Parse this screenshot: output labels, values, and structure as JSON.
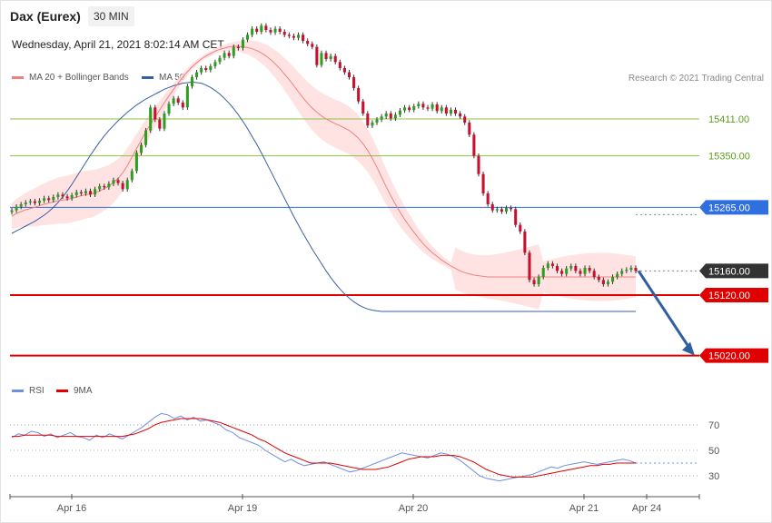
{
  "header": {
    "title": "Dax (Eurex)",
    "timeframe": "30 MIN",
    "datetime": "Wednesday, April 21, 2021 8:02:14 AM CET"
  },
  "legend": {
    "ma20": "MA 20 + Bollinger Bands",
    "ma50": "MA 50",
    "credit": "Research © 2021 Trading Central",
    "rsi": "RSI",
    "rsi_ma": "9MA"
  },
  "colors": {
    "up": "#2e9e1f",
    "down": "#c8102e",
    "band": "#ffd9d9",
    "ma20": "#f08080",
    "ma50": "#3a5f9f",
    "resistance": "#8bc34a",
    "pivot": "#2f6fe0",
    "support": "#e00000",
    "last": "#333333",
    "arrow": "#2e5fa0",
    "rsi": "#6f8fe0",
    "rsi_ma": "#e00000"
  },
  "chart_data": [
    {
      "type": "candlestick",
      "x_labels": [
        "Apr 16",
        "Apr 19",
        "Apr 20",
        "Apr 21",
        "Apr 24"
      ],
      "ylim": [
        14985,
        15465
      ],
      "levels": [
        {
          "value": 15411,
          "label": "15411.00",
          "kind": "resistance"
        },
        {
          "value": 15350,
          "label": "15350.00",
          "kind": "resistance"
        },
        {
          "value": 15265,
          "label": "15265.00",
          "kind": "pivot"
        },
        {
          "value": 15160,
          "label": "15160.00",
          "kind": "last"
        },
        {
          "value": 15120,
          "label": "15120.00",
          "kind": "support"
        },
        {
          "value": 15020,
          "label": "15020.00",
          "kind": "support"
        }
      ],
      "forecast_arrow": {
        "from": 15160,
        "to": 15020
      },
      "candles_close": [
        15260,
        15266,
        15270,
        15273,
        15275,
        15272,
        15276,
        15280,
        15277,
        15282,
        15286,
        15283,
        15280,
        15285,
        15290,
        15288,
        15292,
        15286,
        15295,
        15300,
        15298,
        15304,
        15310,
        15305,
        15295,
        15310,
        15325,
        15355,
        15368,
        15392,
        15430,
        15410,
        15395,
        15420,
        15436,
        15445,
        15438,
        15430,
        15465,
        15480,
        15488,
        15495,
        15492,
        15498,
        15505,
        15512,
        15520,
        15515,
        15530,
        15528,
        15542,
        15550,
        15560,
        15555,
        15565,
        15558,
        15554,
        15560,
        15555,
        15550,
        15548,
        15545,
        15550,
        15540,
        15535,
        15530,
        15500,
        15520,
        15510,
        15515,
        15505,
        15495,
        15488,
        15480,
        15462,
        15440,
        15420,
        15400,
        15405,
        15410,
        15415,
        15420,
        15412,
        15418,
        15425,
        15430,
        15426,
        15432,
        15436,
        15430,
        15428,
        15435,
        15424,
        15430,
        15420,
        15426,
        15420,
        15415,
        15405,
        15385,
        15350,
        15320,
        15288,
        15270,
        15260,
        15262,
        15258,
        15264,
        15262,
        15236,
        15225,
        15190,
        15145,
        15138,
        15150,
        15165,
        15172,
        15168,
        15160,
        15155,
        15164,
        15168,
        15160,
        15155,
        15165,
        15160,
        15150,
        15145,
        15138,
        15142,
        15150,
        15155,
        15160,
        15162,
        15165,
        15160
      ],
      "ma20": [
        15250,
        15255,
        15258,
        15261,
        15263,
        15265,
        15268,
        15270,
        15272,
        15274,
        15276,
        15277,
        15278,
        15280,
        15282,
        15284,
        15286,
        15287,
        15289,
        15292,
        15296,
        15300,
        15306,
        15313,
        15322,
        15334,
        15348,
        15362,
        15376,
        15390,
        15402,
        15414,
        15426,
        15438,
        15449,
        15460,
        15470,
        15480,
        15489,
        15497,
        15504,
        15510,
        15515,
        15519,
        15523,
        15526,
        15528,
        15530,
        15531,
        15531,
        15530,
        15529,
        15527,
        15524,
        15520,
        15515,
        15509,
        15502,
        15494,
        15485,
        15476,
        15466,
        15456,
        15446,
        15437,
        15429,
        15422,
        15416,
        15411,
        15407,
        15403,
        15400,
        15396,
        15392,
        15386,
        15379,
        15370,
        15359,
        15346,
        15331,
        15315,
        15299,
        15284,
        15270,
        15257,
        15245,
        15234,
        15224,
        15214,
        15205,
        15197,
        15190,
        15184,
        15178,
        15173,
        15168,
        15164,
        15160,
        15157,
        15155,
        15153,
        15152,
        15151,
        15150,
        15150,
        15150,
        15150,
        15150,
        15150,
        15150,
        15150,
        15150,
        15150,
        15150,
        15150,
        15150,
        15150,
        15150,
        15150,
        15150,
        15150,
        15150,
        15150,
        15150,
        15150,
        15150,
        15150,
        15150,
        15150,
        15150,
        15150,
        15150,
        15150,
        15150,
        15150,
        15150
      ],
      "ma50": [
        15222,
        15226,
        15230,
        15234,
        15238,
        15242,
        15247,
        15252,
        15258,
        15265,
        15273,
        15282,
        15292,
        15303,
        15315,
        15327,
        15339,
        15351,
        15362,
        15373,
        15383,
        15392,
        15400,
        15408,
        15415,
        15422,
        15428,
        15434,
        15439,
        15444,
        15448,
        15452,
        15456,
        15460,
        15463,
        15466,
        15468,
        15470,
        15471,
        15472,
        15471,
        15470,
        15467,
        15463,
        15458,
        15452,
        15445,
        15437,
        15428,
        15418,
        15407,
        15395,
        15382,
        15369,
        15355,
        15340,
        15325,
        15310,
        15295,
        15280,
        15265,
        15250,
        15236,
        15222,
        15209,
        15196,
        15184,
        15172,
        15160,
        15149,
        15139,
        15130,
        15122,
        15115,
        15109,
        15104,
        15100,
        15097,
        15095,
        15094,
        15093,
        15093,
        15093,
        15093,
        15093,
        15093,
        15093,
        15093,
        15093,
        15093,
        15093,
        15093,
        15093,
        15093,
        15093,
        15093,
        15093,
        15093,
        15093,
        15093,
        15093,
        15093,
        15093,
        15093,
        15093,
        15093,
        15093,
        15093,
        15093,
        15093,
        15093,
        15093,
        15093,
        15093,
        15093,
        15093,
        15093,
        15093,
        15093,
        15093,
        15093,
        15093,
        15093,
        15093,
        15093,
        15093,
        15093,
        15093,
        15093,
        15093,
        15093,
        15093,
        15093,
        15093,
        15093,
        15093
      ]
    },
    {
      "type": "line",
      "name": "RSI",
      "ylim": [
        15,
        90
      ],
      "y_ticks": [
        70,
        50,
        30
      ],
      "rsi": [
        60,
        63,
        62,
        65,
        64,
        61,
        63,
        60,
        62,
        64,
        61,
        60,
        58,
        62,
        60,
        63,
        61,
        59,
        62,
        65,
        68,
        72,
        76,
        79,
        78,
        75,
        77,
        74,
        76,
        73,
        74,
        72,
        70,
        66,
        64,
        60,
        58,
        56,
        54,
        50,
        47,
        44,
        41,
        43,
        40,
        38,
        39,
        40,
        41,
        39,
        37,
        35,
        33,
        34,
        36,
        38,
        40,
        42,
        44,
        46,
        48,
        47,
        46,
        45,
        44,
        46,
        48,
        47,
        45,
        42,
        38,
        34,
        30,
        28,
        27,
        26,
        27,
        28,
        29,
        30,
        31,
        33,
        35,
        37,
        36,
        38,
        39,
        40,
        41,
        40,
        39,
        40,
        41,
        42,
        43,
        42,
        40
      ],
      "rsi_ma": [
        61,
        61,
        62,
        62,
        62,
        62,
        62,
        61,
        61,
        61,
        61,
        61,
        61,
        61,
        61,
        61,
        61,
        61,
        62,
        63,
        65,
        67,
        70,
        72,
        73,
        74,
        75,
        75,
        75,
        75,
        74,
        73,
        72,
        70,
        68,
        66,
        64,
        62,
        59,
        57,
        54,
        51,
        48,
        46,
        44,
        42,
        40,
        40,
        40,
        40,
        39,
        38,
        37,
        36,
        35,
        35,
        35,
        36,
        37,
        39,
        41,
        43,
        44,
        45,
        45,
        45,
        46,
        46,
        46,
        45,
        43,
        41,
        38,
        35,
        33,
        31,
        30,
        29,
        29,
        29,
        29,
        30,
        31,
        32,
        33,
        34,
        35,
        36,
        37,
        38,
        38,
        39,
        39,
        40,
        40,
        40,
        40
      ]
    }
  ]
}
